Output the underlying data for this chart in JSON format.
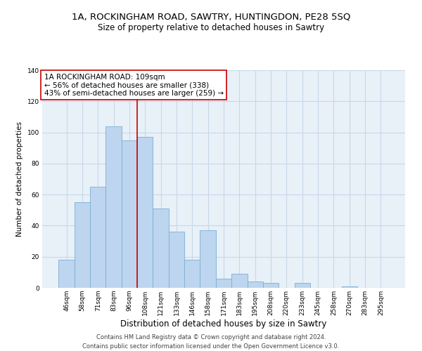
{
  "title": "1A, ROCKINGHAM ROAD, SAWTRY, HUNTINGDON, PE28 5SQ",
  "subtitle": "Size of property relative to detached houses in Sawtry",
  "xlabel": "Distribution of detached houses by size in Sawtry",
  "ylabel": "Number of detached properties",
  "bar_labels": [
    "46sqm",
    "58sqm",
    "71sqm",
    "83sqm",
    "96sqm",
    "108sqm",
    "121sqm",
    "133sqm",
    "146sqm",
    "158sqm",
    "171sqm",
    "183sqm",
    "195sqm",
    "208sqm",
    "220sqm",
    "233sqm",
    "245sqm",
    "258sqm",
    "270sqm",
    "283sqm",
    "295sqm"
  ],
  "bar_values": [
    18,
    55,
    65,
    104,
    95,
    97,
    51,
    36,
    18,
    37,
    6,
    9,
    4,
    3,
    0,
    3,
    0,
    0,
    1,
    0,
    0
  ],
  "bar_facecolor": "#bdd5ee",
  "bar_edgecolor": "#7aafd4",
  "vline_x": 4.5,
  "vline_color": "#cc0000",
  "annotation_text": "1A ROCKINGHAM ROAD: 109sqm\n← 56% of detached houses are smaller (338)\n43% of semi-detached houses are larger (259) →",
  "annotation_box_edgecolor": "#cc0000",
  "annotation_box_facecolor": "#ffffff",
  "ylim": [
    0,
    140
  ],
  "yticks": [
    0,
    20,
    40,
    60,
    80,
    100,
    120,
    140
  ],
  "grid_color": "#c8d8e8",
  "background_color": "#e8f0f8",
  "footer_line1": "Contains HM Land Registry data © Crown copyright and database right 2024.",
  "footer_line2": "Contains public sector information licensed under the Open Government Licence v3.0.",
  "title_fontsize": 9.5,
  "subtitle_fontsize": 8.5,
  "xlabel_fontsize": 8.5,
  "ylabel_fontsize": 7.5,
  "tick_fontsize": 6.5,
  "annotation_fontsize": 7.5,
  "footer_fontsize": 6.0
}
